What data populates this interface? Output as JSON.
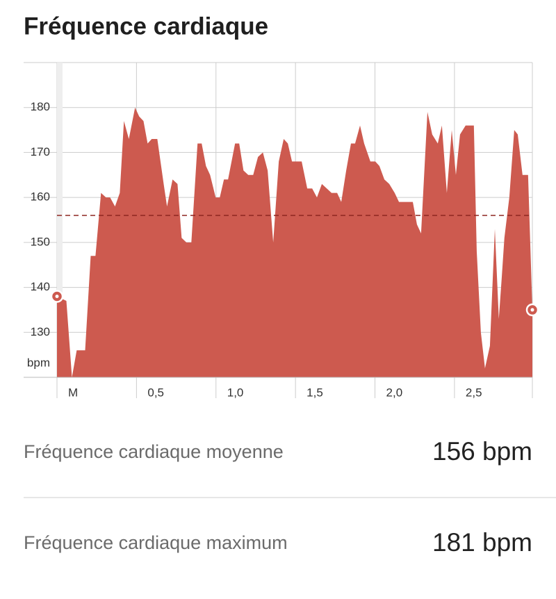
{
  "header": {
    "title": "Fréquence cardiaque"
  },
  "chart_data": {
    "type": "area",
    "color": "#cd5a4f",
    "average": 156,
    "average_color": "#8e2620",
    "y_unit_label": "bpm",
    "grid": true,
    "xlim": [
      0,
      2.99
    ],
    "ylim": [
      120,
      190
    ],
    "yticks": [
      130,
      140,
      150,
      160,
      170,
      180
    ],
    "xticks": [
      {
        "value": 0,
        "label": "M"
      },
      {
        "value": 0.5,
        "label": "0,5"
      },
      {
        "value": 1,
        "label": "1,0"
      },
      {
        "value": 1.5,
        "label": "1,5"
      },
      {
        "value": 2,
        "label": "2,0"
      },
      {
        "value": 2.5,
        "label": "2,5"
      }
    ],
    "x": [
      0,
      0.059,
      0.094,
      0.124,
      0.177,
      0.212,
      0.242,
      0.277,
      0.308,
      0.334,
      0.365,
      0.395,
      0.421,
      0.452,
      0.491,
      0.517,
      0.544,
      0.57,
      0.596,
      0.631,
      0.671,
      0.692,
      0.727,
      0.758,
      0.784,
      0.814,
      0.845,
      0.884,
      0.91,
      0.937,
      0.963,
      0.998,
      1.024,
      1.05,
      1.076,
      1.12,
      1.146,
      1.173,
      1.203,
      1.234,
      1.264,
      1.295,
      1.325,
      1.36,
      1.395,
      1.426,
      1.452,
      1.478,
      1.539,
      1.574,
      1.605,
      1.635,
      1.666,
      1.697,
      1.727,
      1.762,
      1.788,
      1.819,
      1.849,
      1.875,
      1.906,
      1.932,
      1.971,
      2.002,
      2.028,
      2.059,
      2.09,
      2.124,
      2.151,
      2.238,
      2.264,
      2.29,
      2.33,
      2.36,
      2.395,
      2.421,
      2.452,
      2.483,
      2.509,
      2.535,
      2.57,
      2.622,
      2.64,
      2.666,
      2.692,
      2.723,
      2.754,
      2.779,
      2.797,
      2.814,
      2.845,
      2.876,
      2.898,
      2.928,
      2.963,
      2.99
    ],
    "values": [
      138,
      137,
      120,
      126,
      126,
      147,
      147,
      161,
      160,
      160,
      158,
      161,
      177,
      173,
      180,
      178,
      177,
      172,
      173,
      173,
      163,
      158,
      164,
      163,
      151,
      150,
      150,
      172,
      172,
      167,
      165,
      160,
      160,
      164,
      164,
      172,
      172,
      166,
      165,
      165,
      169,
      170,
      166,
      150,
      168,
      173,
      172,
      168,
      168,
      162,
      162,
      160,
      163,
      162,
      161,
      161,
      159,
      166,
      172,
      172,
      176,
      172,
      168,
      168,
      167,
      164,
      163,
      161,
      159,
      159,
      154,
      152,
      179,
      174,
      172,
      176,
      161,
      175,
      165,
      174,
      176,
      176,
      148,
      130,
      122,
      127,
      153,
      133,
      142,
      151,
      160,
      175,
      174,
      165,
      165,
      135
    ]
  },
  "stats": [
    {
      "label": "Fréquence cardiaque moyenne",
      "value": "156 bpm"
    },
    {
      "label": "Fréquence cardiaque maximum",
      "value": "181 bpm"
    }
  ]
}
